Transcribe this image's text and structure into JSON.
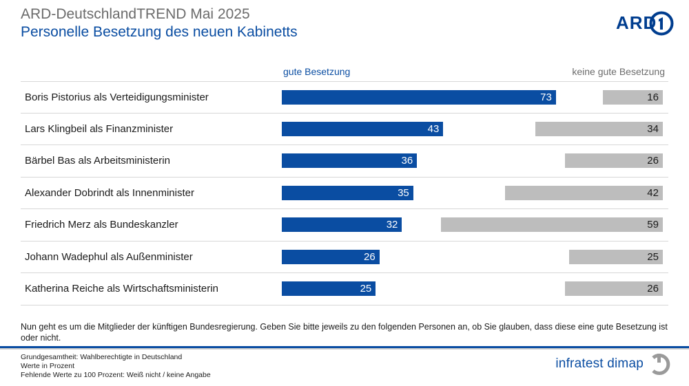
{
  "header": {
    "title": "ARD-DeutschlandTREND Mai 2025",
    "subtitle": "Personelle Besetzung des neuen Kabinetts"
  },
  "logo": {
    "text": "ARD",
    "icon": "ard-one-icon"
  },
  "chart_data": {
    "type": "bar",
    "orientation": "horizontal",
    "series_headers": [
      "gute Besetzung",
      "keine gute Besetzung"
    ],
    "categories": [
      "Boris Pistorius als Verteidigungsminister",
      "Lars Klingbeil als Finanzminister",
      "Bärbel Bas als Arbeitsministerin",
      "Alexander Dobrindt als Innenminister",
      "Friedrich Merz als Bundeskanzler",
      "Johann Wadephul als Außenminister",
      "Katherina Reiche als Wirtschaftsministerin"
    ],
    "series": [
      {
        "name": "gute Besetzung",
        "color": "#0a4da2",
        "values": [
          73,
          43,
          36,
          35,
          32,
          26,
          25
        ]
      },
      {
        "name": "keine gute Besetzung",
        "color": "#bdbdbd",
        "values": [
          16,
          34,
          26,
          42,
          59,
          25,
          26
        ]
      }
    ],
    "xlim": [
      0,
      100
    ]
  },
  "question": "Nun geht es um die Mitglieder der künftigen Bundesregierung. Geben Sie bitte jeweils zu den folgenden Personen an, ob Sie glauben, dass diese eine gute Besetzung ist oder nicht.",
  "notes": [
    "Grundgesamtheit: Wahlberechtigte in Deutschland",
    "Werte in Prozent",
    "Fehlende Werte zu 100 Prozent: Weiß nicht / keine Angabe"
  ],
  "footer_logo": {
    "text": "infratest dimap",
    "icon": "infratest-dimap-icon"
  },
  "colors": {
    "brand_blue": "#0a4da2",
    "neutral_gray": "#bdbdbd"
  }
}
